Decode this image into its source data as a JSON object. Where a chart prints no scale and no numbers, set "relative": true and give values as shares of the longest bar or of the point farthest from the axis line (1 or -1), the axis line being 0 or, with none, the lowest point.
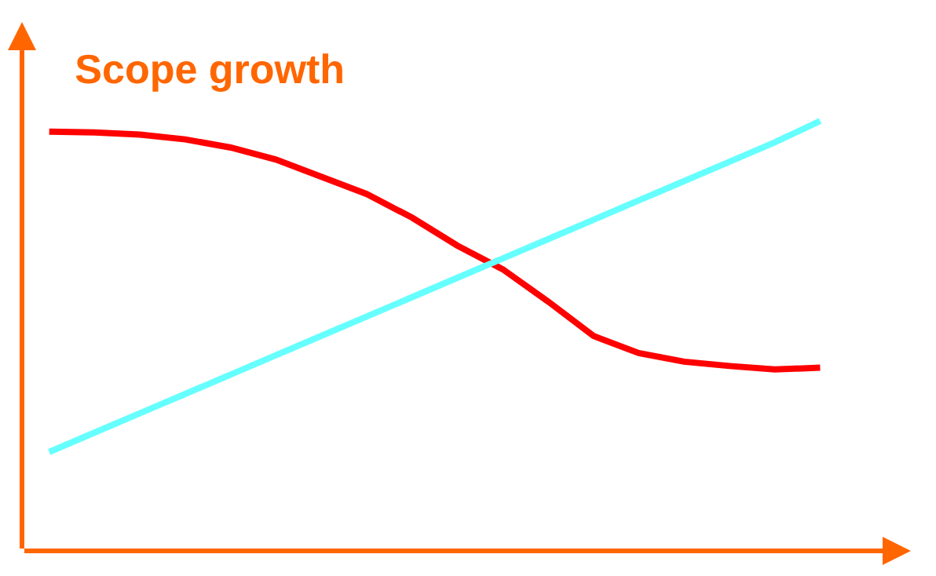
{
  "chart_data": {
    "type": "line",
    "title": "Scope growth",
    "relative": true,
    "marker": "none",
    "line_style": "solid",
    "categories": [
      null,
      null,
      null,
      null,
      null,
      null,
      null,
      null,
      null,
      null,
      null,
      null,
      null,
      null,
      null,
      null,
      null,
      null
    ],
    "series": [
      {
        "color": "#ff0000",
        "values": [
          0.975,
          0.973,
          0.968,
          0.957,
          0.938,
          0.91,
          0.87,
          0.83,
          0.775,
          0.71,
          0.655,
          0.58,
          0.5,
          0.46,
          0.44,
          0.43,
          0.422,
          0.426
        ]
      },
      {
        "color": "#66ffff",
        "values": [
          0.23,
          0.275,
          0.32,
          0.365,
          0.41,
          0.455,
          0.5,
          0.545,
          0.59,
          0.635,
          0.68,
          0.725,
          0.77,
          0.815,
          0.86,
          0.905,
          0.95,
          1.0
        ]
      }
    ]
  }
}
